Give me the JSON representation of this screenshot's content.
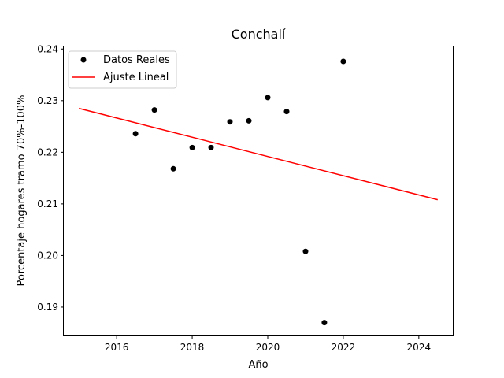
{
  "chart_data": {
    "type": "scatter",
    "title": "Conchalí",
    "xlabel": "Año",
    "ylabel": "Porcentaje hogares tramo 70%-100%",
    "xlim": [
      2014.6,
      2024.9
    ],
    "ylim": [
      0.1845,
      0.2405
    ],
    "xticks": [
      2016,
      2018,
      2020,
      2022,
      2024
    ],
    "yticks": [
      0.19,
      0.2,
      0.21,
      0.22,
      0.23,
      0.24
    ],
    "xtick_labels": [
      "2016",
      "2018",
      "2020",
      "2022",
      "2024"
    ],
    "ytick_labels": [
      "0.19",
      "0.20",
      "0.21",
      "0.22",
      "0.23",
      "0.24"
    ],
    "grid": false,
    "legend_position": "top-left",
    "series": [
      {
        "name": "Datos Reales",
        "kind": "scatter",
        "color": "#000000",
        "points": [
          {
            "x": 2016.5,
            "y": 0.2236
          },
          {
            "x": 2017.0,
            "y": 0.2282
          },
          {
            "x": 2017.5,
            "y": 0.2168
          },
          {
            "x": 2018.0,
            "y": 0.2209
          },
          {
            "x": 2018.5,
            "y": 0.2209
          },
          {
            "x": 2019.0,
            "y": 0.2259
          },
          {
            "x": 2019.5,
            "y": 0.2261
          },
          {
            "x": 2020.0,
            "y": 0.2306
          },
          {
            "x": 2020.5,
            "y": 0.2279
          },
          {
            "x": 2021.0,
            "y": 0.2008
          },
          {
            "x": 2021.5,
            "y": 0.187
          },
          {
            "x": 2022.0,
            "y": 0.2376
          }
        ]
      },
      {
        "name": "Ajuste Lineal",
        "kind": "line",
        "color": "#ff0000",
        "points": [
          {
            "x": 2015.0,
            "y": 0.2285
          },
          {
            "x": 2024.5,
            "y": 0.2108
          }
        ]
      }
    ]
  }
}
